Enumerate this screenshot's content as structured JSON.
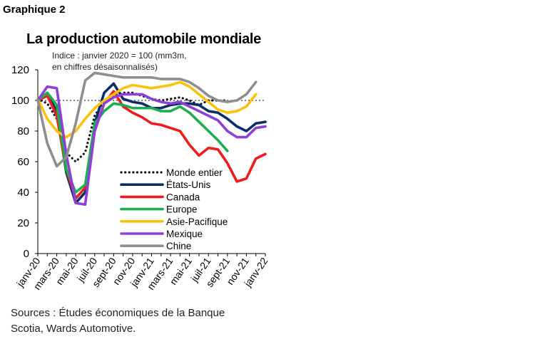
{
  "figure_label": "Graphique 2",
  "chart_data": {
    "type": "line",
    "title": "La production automobile mondiale",
    "subtitle": [
      "Indice : janvier 2020  = 100 (mm3m,",
      "en chiffres désaisonnalisés)"
    ],
    "xlabel": "",
    "ylabel": "",
    "ylim": [
      0,
      120
    ],
    "yticks": [
      0,
      20,
      40,
      60,
      80,
      100,
      120
    ],
    "reference_line": 100,
    "x_tick_labels": [
      "janv-20",
      "mars-20",
      "mai-20",
      "juil-20",
      "sept-20",
      "nov-20",
      "janv-21",
      "mars-21",
      "mai-21",
      "juil-21",
      "sept-21",
      "nov-21",
      "janv-22"
    ],
    "x": [
      "janv-20",
      "févr-20",
      "mars-20",
      "avr-20",
      "mai-20",
      "juin-20",
      "juil-20",
      "août-20",
      "sept-20",
      "oct-20",
      "nov-20",
      "déc-20",
      "janv-21",
      "févr-21",
      "mars-21",
      "avr-21",
      "mai-21",
      "juin-21",
      "juil-21",
      "août-21",
      "sept-21",
      "oct-21",
      "nov-21",
      "déc-21",
      "janv-22"
    ],
    "series": [
      {
        "name": "Monde entier",
        "color": "#111111",
        "dash": "dotted",
        "values": [
          101,
          98,
          88,
          66,
          60,
          66,
          90,
          100,
          103,
          105,
          105,
          103,
          101,
          100,
          101,
          102,
          100,
          97,
          100,
          100,
          100,
          null,
          null,
          null,
          null
        ]
      },
      {
        "name": "États-Unis",
        "color": "#0c2d6b",
        "dash": "solid",
        "values": [
          100,
          104,
          93,
          53,
          33,
          40,
          85,
          105,
          111,
          101,
          99,
          98,
          95,
          95,
          97,
          98,
          98,
          97,
          93,
          92,
          88,
          83,
          80,
          85,
          86
        ]
      },
      {
        "name": "Canada",
        "color": "#ee1c1c",
        "dash": "solid",
        "values": [
          100,
          103,
          90,
          55,
          36,
          43,
          80,
          98,
          106,
          96,
          92,
          89,
          85,
          84,
          82,
          80,
          71,
          64,
          69,
          68,
          59,
          47,
          49,
          62,
          65
        ]
      },
      {
        "name": "Europe",
        "color": "#1fae4f",
        "dash": "solid",
        "values": [
          100,
          105,
          97,
          55,
          40,
          45,
          85,
          93,
          98,
          97,
          95,
          95,
          95,
          93,
          93,
          96,
          92,
          86,
          80,
          74,
          67,
          null,
          null,
          null,
          null
        ]
      },
      {
        "name": "Asie-Pacifique",
        "color": "#fcc10f",
        "dash": "solid",
        "values": [
          101,
          88,
          80,
          76,
          80,
          88,
          95,
          100,
          104,
          108,
          110,
          109,
          108,
          109,
          110,
          112,
          109,
          104,
          99,
          94,
          92,
          93,
          96,
          104,
          null
        ]
      },
      {
        "name": "Mexique",
        "color": "#8d3fd8",
        "dash": "solid",
        "values": [
          100,
          109,
          108,
          65,
          33,
          32,
          80,
          98,
          102,
          104,
          104,
          104,
          101,
          99,
          98,
          99,
          96,
          93,
          90,
          87,
          80,
          76,
          76,
          82,
          83
        ]
      },
      {
        "name": "Chine",
        "color": "#8e8e8e",
        "dash": "solid",
        "values": [
          100,
          72,
          57,
          63,
          85,
          113,
          118,
          117,
          116,
          115,
          115,
          115,
          115,
          114,
          114,
          114,
          112,
          108,
          103,
          100,
          99,
          100,
          104,
          112,
          null
        ]
      }
    ],
    "legend_position": "lower-center-inside"
  },
  "sources": [
    "Sources : Études économiques de la Banque",
    "Scotia, Wards Automotive."
  ]
}
